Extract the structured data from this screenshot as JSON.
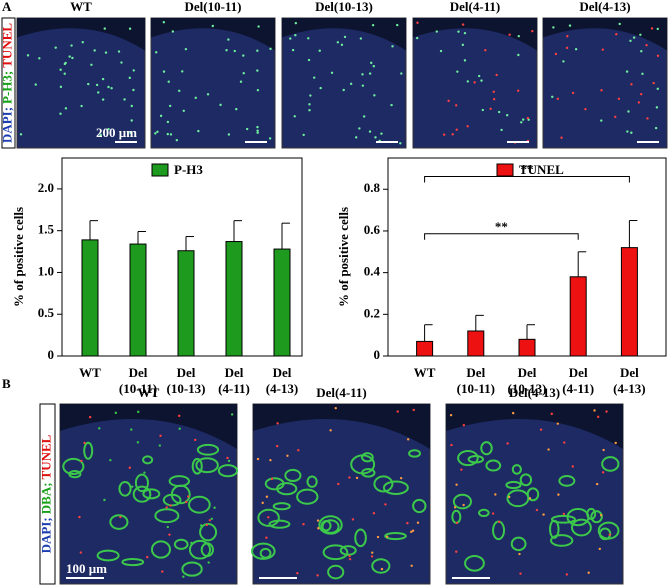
{
  "panel_a": {
    "label": "A",
    "image_titles": [
      "WT",
      "Del(10-11)",
      "Del(10-13)",
      "Del(4-11)",
      "Del(4-13)"
    ],
    "side_label": [
      "DAPI;",
      "P-H3;",
      "TUNEL"
    ],
    "scale_bar": "200 μm"
  },
  "chart_data": [
    {
      "type": "bar",
      "ylabel": "% of positive cells",
      "categories": [
        [
          "WT"
        ],
        [
          "Del",
          "(10-11)"
        ],
        [
          "Del",
          "(10-13)"
        ],
        [
          "Del",
          "(4-11)"
        ],
        [
          "Del",
          "(4-13)"
        ]
      ],
      "series": [
        {
          "name": "P-H3",
          "color": "#1e9a1e",
          "values": [
            1.39,
            1.34,
            1.26,
            1.37,
            1.28
          ],
          "errors": [
            0.23,
            0.15,
            0.17,
            0.25,
            0.31
          ]
        }
      ],
      "ylim": [
        0,
        2.37
      ],
      "yticks": [
        0,
        0.5,
        {
          "value": 1,
          "label": "1.0"
        },
        1.5,
        {
          "value": 2,
          "label": "2.0"
        }
      ]
    },
    {
      "type": "bar",
      "ylabel": "% of positive cells",
      "categories": [
        [
          "WT"
        ],
        [
          "Del",
          "(10-11)"
        ],
        [
          "Del",
          "(10-13)"
        ],
        [
          "Del",
          "(4-11)"
        ],
        [
          "Del",
          "(4-13)"
        ]
      ],
      "series": [
        {
          "name": "TUNEL",
          "color": "#ee1111",
          "values": [
            0.07,
            0.12,
            0.08,
            0.38,
            0.52
          ],
          "errors": [
            0.08,
            0.075,
            0.07,
            0.12,
            0.13
          ]
        }
      ],
      "ylim": [
        0,
        0.95
      ],
      "yticks": [
        0,
        0.2,
        0.4,
        0.6,
        0.8
      ],
      "significance": [
        {
          "label": "**",
          "pair": [
            0,
            3
          ]
        },
        {
          "label": "**",
          "pair": [
            0,
            4
          ]
        }
      ]
    }
  ],
  "panel_b": {
    "label": "B",
    "image_titles": [
      "WT",
      "Del(4-11)",
      "Del(4-13)"
    ],
    "side_label": [
      "DAPI;",
      "DBA;",
      "TUNEL"
    ],
    "scale_bar": "100 μm"
  }
}
